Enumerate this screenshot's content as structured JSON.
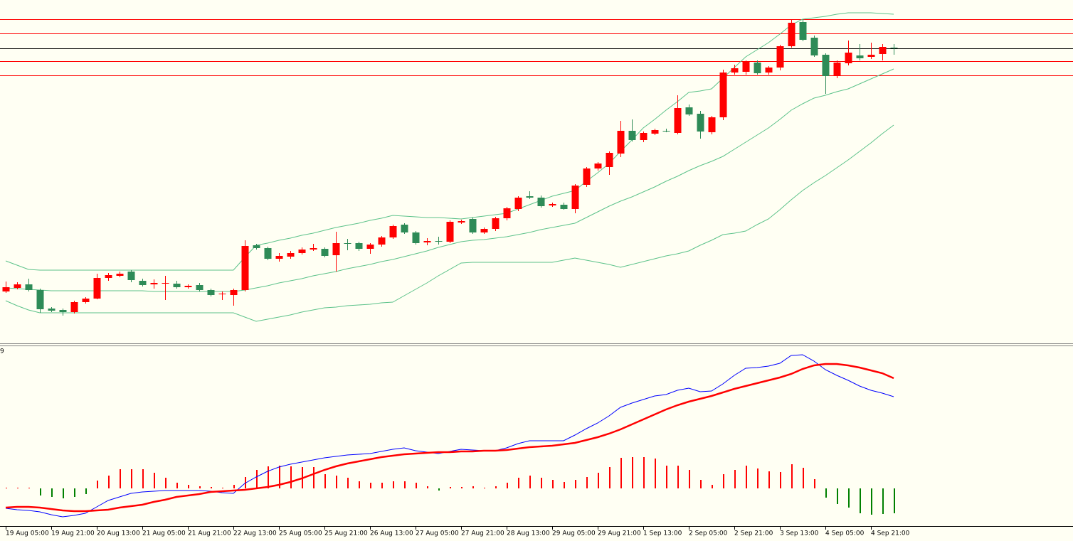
{
  "chart_data": [
    {
      "type": "candlestick",
      "categories": [
        "19 Aug 05:00",
        null,
        null,
        null,
        "19 Aug 21:00",
        null,
        null,
        null,
        "20 Aug 13:00",
        null,
        null,
        null,
        "21 Aug 05:00",
        null,
        null,
        null,
        "21 Aug 21:00",
        null,
        null,
        null,
        "22 Aug 13:00",
        null,
        null,
        null,
        "25 Aug 05:00",
        null,
        null,
        null,
        "25 Aug 21:00",
        null,
        null,
        null,
        "26 Aug 13:00",
        null,
        null,
        null,
        "27 Aug 05:00",
        null,
        null,
        null,
        "27 Aug 21:00",
        null,
        null,
        null,
        "28 Aug 13:00",
        null,
        null,
        null,
        "29 Aug 05:00",
        null,
        null,
        null,
        "29 Aug 21:00",
        null,
        null,
        null,
        "1 Sep 13:00",
        null,
        null,
        null,
        "2 Sep 05:00",
        null,
        null,
        null,
        "2 Sep 21:00",
        null,
        null,
        null,
        "3 Sep 13:00",
        null,
        null,
        null,
        "4 Sep 05:00",
        null,
        null,
        null,
        "4 Sep 21:00",
        null,
        null
      ],
      "open": [
        73,
        78,
        83,
        75,
        49,
        47,
        44,
        58,
        63,
        92,
        95,
        101,
        88,
        83,
        84,
        84,
        79,
        82,
        75,
        69,
        68,
        75,
        138,
        134,
        119,
        122,
        127,
        132,
        133,
        124,
        141,
        141,
        133,
        139,
        149,
        167,
        156,
        142,
        144,
        143,
        170,
        175,
        156,
        161,
        176,
        189,
        207,
        205,
        194,
        195,
        189,
        223,
        246,
        248,
        267,
        299,
        286,
        295,
        299,
        296,
        332,
        323,
        297,
        318,
        381,
        382,
        395,
        381,
        388,
        418,
        452,
        430,
        406,
        376,
        394,
        405,
        403,
        407,
        416
      ],
      "high": [
        87,
        86,
        91,
        77,
        51,
        49,
        60,
        65,
        98,
        99,
        101,
        103,
        91,
        90,
        95,
        88,
        83,
        85,
        77,
        73,
        77,
        145,
        140,
        136,
        127,
        130,
        135,
        140,
        135,
        157,
        147,
        143,
        141,
        151,
        167,
        169,
        158,
        148,
        150,
        173,
        174,
        177,
        163,
        178,
        192,
        207,
        214,
        208,
        198,
        198,
        224,
        248,
        255,
        270,
        313,
        315,
        298,
        302,
        302,
        349,
        336,
        327,
        320,
        385,
        392,
        398,
        398,
        390,
        420,
        456,
        456,
        433,
        408,
        398,
        426,
        421,
        423,
        421,
        421
      ],
      "low": [
        71,
        76,
        73,
        43,
        44,
        39,
        42,
        56,
        62,
        88,
        93,
        86,
        80,
        77,
        61,
        77,
        77,
        73,
        66,
        61,
        53,
        73,
        132,
        117,
        115,
        119,
        125,
        130,
        121,
        101,
        131,
        130,
        126,
        136,
        147,
        154,
        139,
        138,
        139,
        141,
        168,
        154,
        154,
        158,
        173,
        186,
        203,
        191,
        192,
        188,
        183,
        220,
        243,
        237,
        262,
        284,
        283,
        293,
        297,
        294,
        320,
        288,
        294,
        314,
        378,
        378,
        378,
        378,
        384,
        416,
        425,
        403,
        351,
        373,
        391,
        398,
        400,
        398,
        406
      ],
      "close": [
        79,
        83,
        75,
        48,
        46,
        44,
        58,
        63,
        92,
        96,
        98,
        89,
        82,
        85,
        85,
        79,
        81,
        75,
        68,
        70,
        75,
        137,
        134,
        119,
        123,
        127,
        132,
        134,
        123,
        141,
        141,
        133,
        139,
        149,
        165,
        156,
        141,
        144,
        144,
        171,
        172,
        156,
        161,
        176,
        190,
        205,
        205,
        193,
        196,
        189,
        222,
        246,
        253,
        268,
        299,
        286,
        296,
        300,
        299,
        331,
        322,
        298,
        318,
        381,
        387,
        396,
        380,
        388,
        418,
        451,
        427,
        405,
        376,
        395,
        409,
        401,
        406,
        417,
        416
      ],
      "color_up": "#ff0000",
      "color_down": "#2e8b57",
      "series": [
        {
          "color": "#5cc28a",
          "values": [
            116,
            110,
            104,
            103,
            103,
            103,
            103,
            103,
            103,
            103,
            103,
            103,
            103,
            103,
            103,
            103,
            103,
            103,
            103,
            103,
            103,
            121,
            138,
            141,
            145,
            148,
            152,
            155,
            159,
            163,
            166,
            169,
            173,
            176,
            180,
            179,
            178,
            177,
            177,
            176,
            175,
            177,
            179,
            181,
            183,
            189,
            195,
            201,
            207,
            211,
            215,
            228,
            240,
            253,
            270,
            286,
            303,
            315,
            328,
            340,
            353,
            355,
            358,
            373,
            388,
            403,
            413,
            423,
            435,
            448,
            456,
            458,
            460,
            463,
            465,
            465,
            465,
            464,
            463
          ]
        },
        {
          "color": "#5cc28a",
          "values": [
            78,
            77,
            76,
            75,
            74,
            74,
            74,
            74,
            74,
            74,
            74,
            74,
            74,
            73,
            73,
            73,
            73,
            73,
            73,
            73,
            73,
            75,
            78,
            81,
            85,
            88,
            91,
            95,
            98,
            101,
            105,
            108,
            111,
            115,
            118,
            122,
            126,
            130,
            135,
            139,
            143,
            145,
            146,
            148,
            150,
            153,
            156,
            160,
            163,
            166,
            169,
            177,
            185,
            193,
            200,
            206,
            213,
            220,
            228,
            235,
            243,
            250,
            256,
            263,
            273,
            283,
            293,
            303,
            315,
            328,
            337,
            345,
            349,
            354,
            358,
            365,
            372,
            379,
            386
          ]
        },
        {
          "color": "#5cc28a",
          "values": [
            60,
            53,
            47,
            43,
            43,
            43,
            43,
            43,
            43,
            43,
            43,
            43,
            43,
            43,
            43,
            43,
            43,
            43,
            43,
            43,
            43,
            37,
            31,
            34,
            37,
            40,
            44,
            47,
            50,
            51,
            53,
            54,
            55,
            57,
            58,
            67,
            76,
            85,
            95,
            104,
            113,
            114,
            114,
            114,
            114,
            114,
            114,
            114,
            114,
            117,
            120,
            117,
            114,
            111,
            107,
            111,
            115,
            119,
            123,
            126,
            130,
            138,
            145,
            153,
            155,
            158,
            167,
            175,
            188,
            202,
            215,
            226,
            236,
            247,
            258,
            270,
            282,
            295,
            307
          ]
        }
      ],
      "hlines": [
        {
          "value": 456,
          "color": "#ff0000"
        },
        {
          "value": 436,
          "color": "#ff0000"
        },
        {
          "value": 415,
          "color": "#000000"
        },
        {
          "value": 397,
          "color": "#ff0000"
        },
        {
          "value": 377,
          "color": "#ff0000"
        }
      ],
      "ylim": [
        0,
        483
      ]
    },
    {
      "type": "macd",
      "label": "9",
      "values": [
        0,
        0,
        0,
        -10,
        -12,
        -14,
        -12,
        -8,
        11,
        18,
        27,
        27,
        27,
        22,
        15,
        8,
        5,
        3,
        2,
        1,
        5,
        16,
        26,
        31,
        32,
        31,
        30,
        30,
        20,
        18,
        15,
        10,
        8,
        8,
        10,
        10,
        8,
        3,
        -3,
        2,
        2,
        3,
        1,
        3,
        8,
        15,
        18,
        15,
        12,
        9,
        12,
        16,
        22,
        30,
        43,
        44,
        44,
        42,
        32,
        32,
        26,
        12,
        5,
        20,
        26,
        32,
        28,
        24,
        23,
        34,
        29,
        13,
        -13,
        -22,
        -27,
        -35,
        -37,
        -36,
        -35
      ],
      "color_up": "#ff0000",
      "color_down": "#008000",
      "series": [
        {
          "color": "#0000ff",
          "width": 1,
          "values": [
            -28,
            -30,
            -31,
            -33,
            -37,
            -40,
            -38,
            -35,
            -26,
            -17,
            -12,
            -7,
            -5,
            -4,
            -3,
            -3,
            -3,
            -3,
            -4,
            -6,
            -7,
            7,
            16,
            24,
            30,
            34,
            37,
            40,
            43,
            45,
            47,
            48,
            49,
            52,
            55,
            57,
            53,
            51,
            49,
            52,
            55,
            54,
            53,
            53,
            57,
            63,
            67,
            67,
            67,
            67,
            75,
            84,
            92,
            102,
            114,
            120,
            125,
            130,
            132,
            138,
            141,
            136,
            137,
            147,
            159,
            169,
            170,
            172,
            176,
            187,
            188,
            179,
            167,
            159,
            152,
            144,
            138,
            134,
            129
          ]
        },
        {
          "color": "#ff0000",
          "width": 2.5,
          "values": [
            -27,
            -26,
            -26,
            -27,
            -29,
            -31,
            -32,
            -32,
            -31,
            -30,
            -27,
            -25,
            -23,
            -19,
            -16,
            -12,
            -10,
            -8,
            -5,
            -4,
            -3,
            -2,
            0,
            2,
            5,
            9,
            14,
            20,
            26,
            31,
            35,
            38,
            41,
            44,
            46,
            48,
            49,
            50,
            51,
            51,
            52,
            52,
            53,
            53,
            54,
            56,
            58,
            59,
            60,
            62,
            64,
            68,
            72,
            77,
            83,
            90,
            97,
            104,
            111,
            117,
            122,
            126,
            130,
            135,
            140,
            144,
            148,
            152,
            156,
            161,
            168,
            173,
            175,
            175,
            173,
            170,
            166,
            162,
            155
          ]
        }
      ],
      "ylim": [
        -53,
        201
      ]
    }
  ]
}
